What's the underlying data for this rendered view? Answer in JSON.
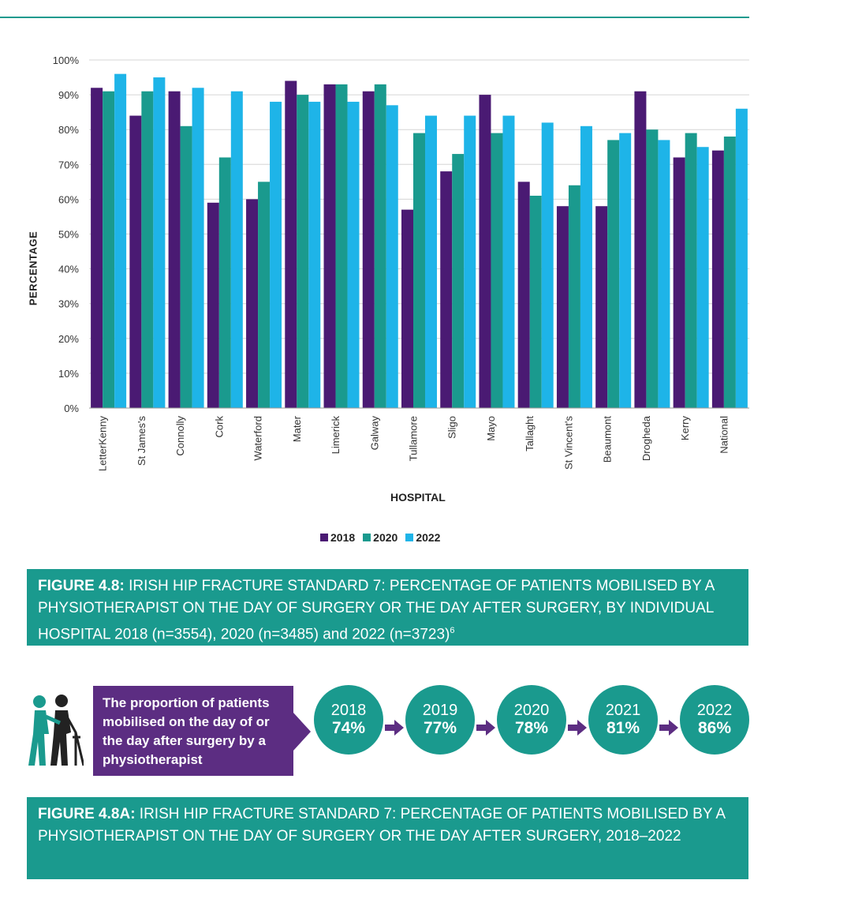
{
  "chart_data": {
    "type": "bar",
    "categories": [
      "LetterKenny",
      "St James's",
      "Connolly",
      "Cork",
      "Waterford",
      "Mater",
      "Limerick",
      "Galway",
      "Tullamore",
      "Sligo",
      "Mayo",
      "Tallaght",
      "St Vincent's",
      "Beaumont",
      "Drogheda",
      "Kerry",
      "National"
    ],
    "series": [
      {
        "name": "2018",
        "color": "#4a1a73",
        "values": [
          92,
          84,
          91,
          59,
          60,
          94,
          93,
          91,
          57,
          68,
          90,
          65,
          58,
          58,
          91,
          72,
          74
        ]
      },
      {
        "name": "2020",
        "color": "#1a9a8e",
        "values": [
          91,
          91,
          81,
          72,
          65,
          90,
          93,
          93,
          79,
          73,
          79,
          61,
          64,
          77,
          80,
          79,
          78
        ]
      },
      {
        "name": "2022",
        "color": "#1eb4e8",
        "values": [
          96,
          95,
          92,
          91,
          88,
          88,
          88,
          87,
          84,
          84,
          84,
          82,
          81,
          79,
          77,
          75,
          86
        ]
      }
    ],
    "yticks": [
      "0%",
      "10%",
      "20%",
      "30%",
      "40%",
      "50%",
      "60%",
      "70%",
      "80%",
      "90%",
      "100%"
    ],
    "ylim": [
      0,
      100
    ],
    "xlabel": "HOSPITAL",
    "ylabel": "PERCENTAGE",
    "legend_position": "bottom",
    "grid": true
  },
  "captions": {
    "fig48_label": "FIGURE 4.8:",
    "fig48_text": " IRISH HIP FRACTURE STANDARD 7: PERCENTAGE OF PATIENTS MOBILISED BY A PHYSIOTHERAPIST ON THE DAY OF SURGERY OR THE DAY AFTER SURGERY, BY INDIVIDUAL HOSPITAL 2018 (n=3554), 2020 (n=3485) and 2022 (n=3723)",
    "fig48_sup": "6",
    "fig48a_label": "FIGURE 4.8A:",
    "fig48a_text": " IRISH HIP FRACTURE STANDARD 7: PERCENTAGE OF PATIENTS MOBILISED BY A PHYSIOTHERAPIST ON THE DAY OF SURGERY OR THE DAY AFTER SURGERY, 2018–2022"
  },
  "infographic": {
    "text": "The proportion of patients mobilised on the day of or the day after surgery by a physiotherapist",
    "icon": "patient-walker-icon",
    "timeline": [
      {
        "year": "2018",
        "pct": "74%"
      },
      {
        "year": "2019",
        "pct": "77%"
      },
      {
        "year": "2020",
        "pct": "78%"
      },
      {
        "year": "2021",
        "pct": "81%"
      },
      {
        "year": "2022",
        "pct": "86%"
      }
    ],
    "colors": {
      "teal": "#1a9a8e",
      "purple": "#5c2d82"
    }
  }
}
